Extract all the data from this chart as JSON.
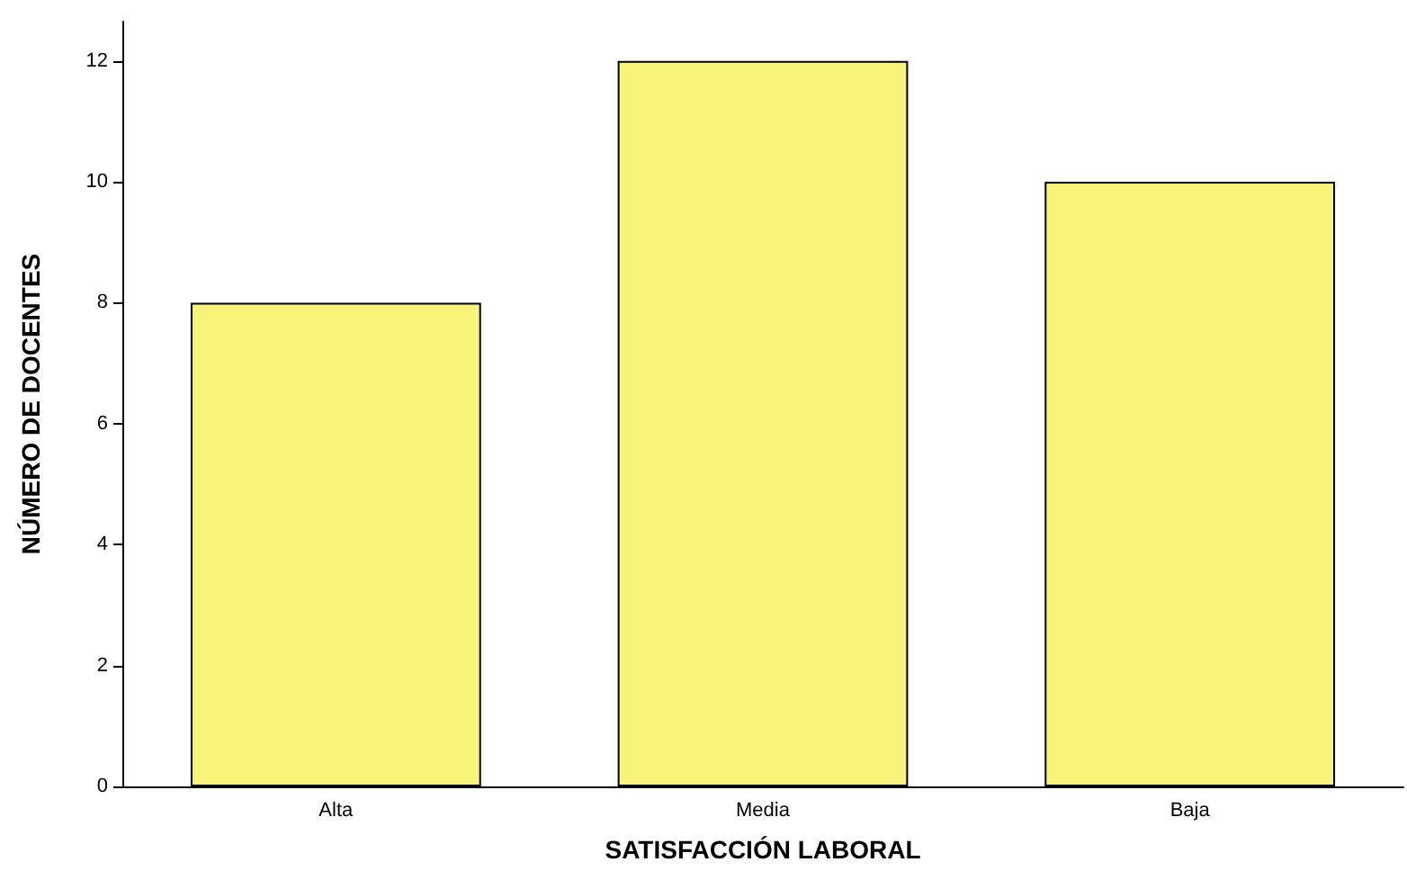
{
  "chart_data": {
    "type": "bar",
    "xlabel": "SATISFACCIÓN LABORAL",
    "ylabel": "NÚMERO DE DOCENTES",
    "categories": [
      "Alta",
      "Media",
      "Baja"
    ],
    "values": [
      8,
      12,
      10
    ],
    "color": "#f8f47a",
    "ylim": [
      0,
      12.65
    ],
    "yticks": [
      0,
      2,
      4,
      6,
      8,
      10,
      12
    ],
    "grid": false
  }
}
